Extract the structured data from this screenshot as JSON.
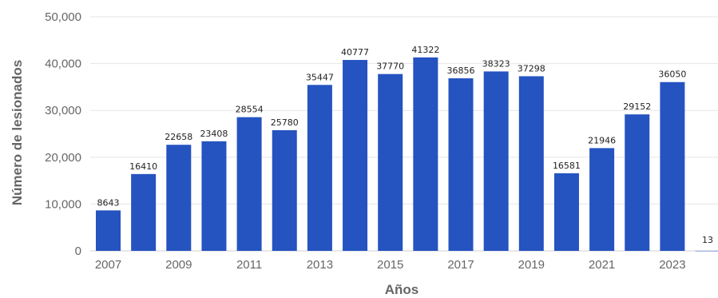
{
  "chart_data": {
    "type": "bar",
    "xlabel": "Años",
    "ylabel": "Número de lesionados",
    "ylim": [
      0,
      50000
    ],
    "y_ticks": [
      0,
      10000,
      20000,
      30000,
      40000,
      50000
    ],
    "y_tick_labels": [
      "0",
      "10,000",
      "20,000",
      "30,000",
      "40,000",
      "50,000"
    ],
    "x_tick_labels": [
      "2007",
      "2009",
      "2011",
      "2013",
      "2015",
      "2017",
      "2019",
      "2021",
      "2023"
    ],
    "categories": [
      "2007",
      "2008",
      "2009",
      "2010",
      "2011",
      "2012",
      "2013",
      "2014",
      "2015",
      "2016",
      "2017",
      "2018",
      "2019",
      "2020",
      "2021",
      "2022",
      "2023",
      "2024"
    ],
    "values": [
      8643,
      16410,
      22658,
      23408,
      28554,
      25780,
      35447,
      40777,
      37770,
      41322,
      36856,
      38323,
      37298,
      16581,
      21946,
      29152,
      36050,
      13
    ],
    "data_labels": [
      "8643",
      "16410",
      "22658",
      "23408",
      "28554",
      "25780",
      "35447",
      "40777",
      "37770",
      "41322",
      "36856",
      "38323",
      "37298",
      "16581",
      "21946",
      "29152",
      "36050",
      "13"
    ],
    "bar_color": "#2553c0",
    "grid": true,
    "legend": "none"
  }
}
